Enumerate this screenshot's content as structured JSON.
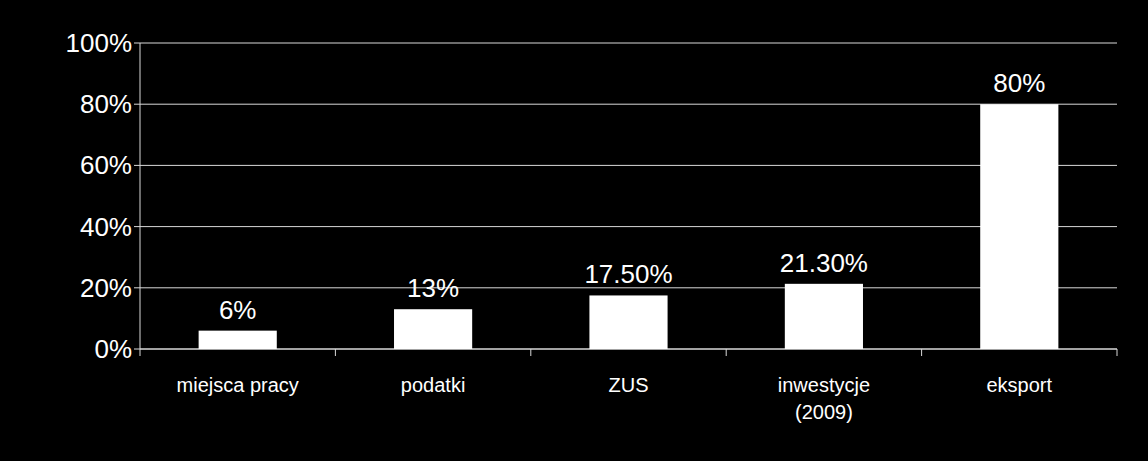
{
  "chart_data": {
    "type": "bar",
    "categories": [
      "miejsca pracy",
      "podatki",
      "ZUS",
      "inwestycje\n(2009)",
      "eksport"
    ],
    "values": [
      6,
      13,
      17.5,
      21.3,
      80
    ],
    "value_labels": [
      "6%",
      "13%",
      "17.50%",
      "21.30%",
      "80%"
    ],
    "color": "#ffffff",
    "ylim": [
      0,
      100
    ],
    "yticks": [
      {
        "value": 0,
        "label": "0%"
      },
      {
        "value": 20,
        "label": "20%"
      },
      {
        "value": 40,
        "label": "40%"
      },
      {
        "value": 60,
        "label": "60%"
      },
      {
        "value": 80,
        "label": "80%"
      },
      {
        "value": 100,
        "label": "100%"
      }
    ],
    "grid": true,
    "data_labels": true
  }
}
